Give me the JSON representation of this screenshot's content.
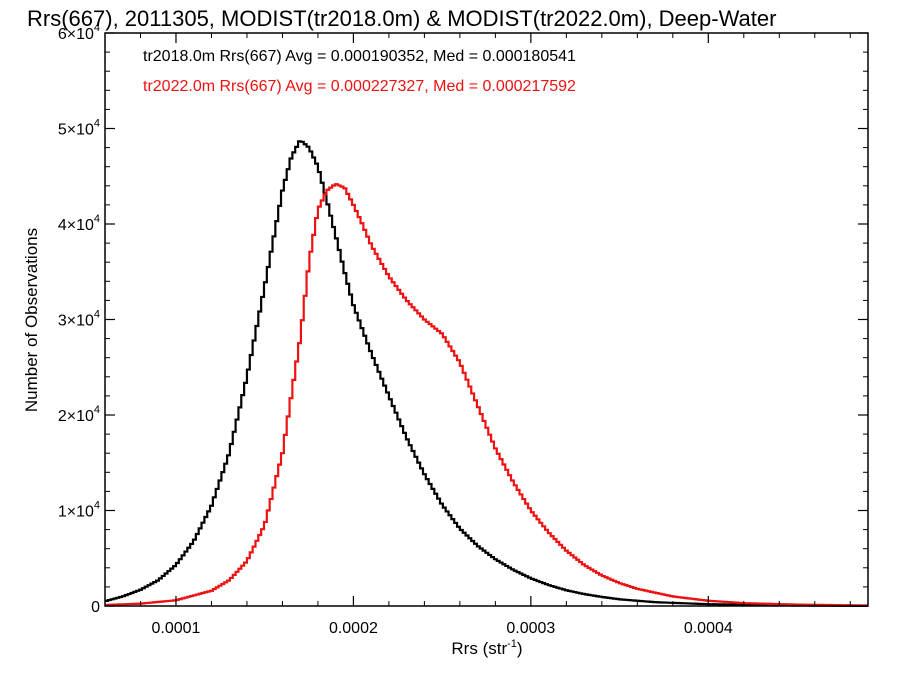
{
  "chart_data": {
    "type": "line",
    "step": true,
    "title": "Rrs(667), 2011305, MODIST(tr2018.0m) & MODIST(tr2022.0m), Deep-Water",
    "xlabel": "Rrs (str",
    "xlabel_sup": "-1",
    "xlabel_close": ")",
    "ylabel": "Number of Observations",
    "xlim": [
      6e-05,
      0.00049
    ],
    "ylim": [
      0,
      60000
    ],
    "xticks": [
      0.0001,
      0.0002,
      0.0003,
      0.0004
    ],
    "xtick_labels": [
      "0.0001",
      "0.0002",
      "0.0003",
      "0.0004"
    ],
    "yticks": [
      0,
      10000,
      20000,
      30000,
      40000,
      50000,
      60000
    ],
    "ytick_labels": [
      {
        "value": 0,
        "mant": "0",
        "exp": ""
      },
      {
        "value": 10000,
        "mant": "1×10",
        "exp": "4"
      },
      {
        "value": 20000,
        "mant": "2×10",
        "exp": "4"
      },
      {
        "value": 30000,
        "mant": "3×10",
        "exp": "4"
      },
      {
        "value": 40000,
        "mant": "4×10",
        "exp": "4"
      },
      {
        "value": 50000,
        "mant": "5×10",
        "exp": "4"
      },
      {
        "value": 60000,
        "mant": "6×10",
        "exp": "4"
      }
    ],
    "grid": false,
    "annotations": [
      {
        "text": "tr2018.0m Rrs(667) Avg = 0.000190352, Med = 0.000180541",
        "color": "#000000"
      },
      {
        "text": "tr2022.0m Rrs(667) Avg = 0.000227327, Med = 0.000217592",
        "color": "#ee1111"
      }
    ],
    "series": [
      {
        "color": "#000000",
        "x": [
          6e-05,
          7e-05,
          8e-05,
          9e-05,
          0.0001,
          0.00011,
          0.00012,
          0.00013,
          0.00014,
          0.00015,
          0.000155,
          0.00016,
          0.000165,
          0.00017,
          0.000175,
          0.00018,
          0.000185,
          0.00019,
          0.000195,
          0.0002,
          0.000205,
          0.00021,
          0.00022,
          0.00023,
          0.00024,
          0.00025,
          0.00026,
          0.00027,
          0.00028,
          0.00029,
          0.0003,
          0.00031,
          0.00032,
          0.00033,
          0.00034,
          0.00035,
          0.00037,
          0.0004,
          0.00045,
          0.00049
        ],
        "y": [
          500,
          1000,
          1700,
          2700,
          4300,
          6800,
          10500,
          16000,
          24000,
          33500,
          38500,
          43500,
          47000,
          48800,
          48000,
          46000,
          42500,
          38800,
          35000,
          31500,
          29000,
          26500,
          22000,
          17600,
          13800,
          10600,
          8100,
          6300,
          4900,
          3800,
          2900,
          2200,
          1650,
          1250,
          950,
          700,
          400,
          190,
          50,
          10
        ]
      },
      {
        "color": "#ee1111",
        "x": [
          6e-05,
          8e-05,
          0.0001,
          0.00012,
          0.00013,
          0.00014,
          0.00015,
          0.00016,
          0.00017,
          0.000175,
          0.00018,
          0.000185,
          0.00019,
          0.000195,
          0.0002,
          0.000205,
          0.00021,
          0.00022,
          0.00023,
          0.00024,
          0.00025,
          0.00026,
          0.00027,
          0.00028,
          0.00029,
          0.0003,
          0.00031,
          0.00032,
          0.00033,
          0.00034,
          0.00035,
          0.00036,
          0.00038,
          0.0004,
          0.00042,
          0.00045,
          0.00049
        ],
        "y": [
          100,
          250,
          600,
          1600,
          2700,
          4700,
          8500,
          16000,
          28000,
          36000,
          41500,
          43500,
          44200,
          43800,
          42000,
          40000,
          37800,
          34500,
          32000,
          30000,
          28500,
          25500,
          21000,
          16500,
          13000,
          10000,
          7700,
          5800,
          4300,
          3200,
          2400,
          1800,
          1000,
          550,
          300,
          150,
          50
        ]
      }
    ]
  }
}
